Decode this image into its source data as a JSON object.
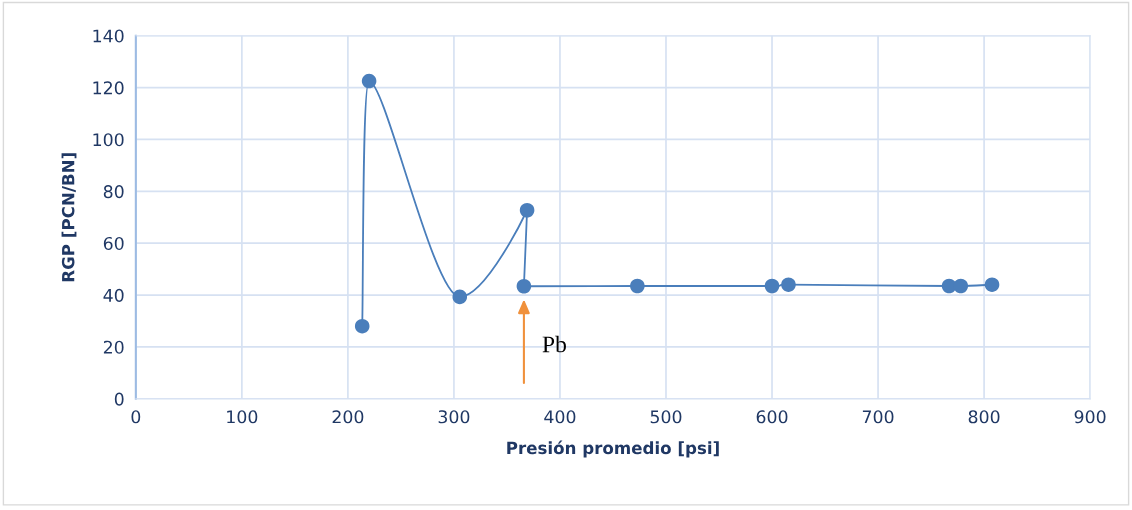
{
  "chart_data": {
    "type": "line",
    "xlabel": "Presión promedio [psi]",
    "ylabel": "RGP [PCN/BN]",
    "x": [
      213.5,
      220,
      305.5,
      369,
      366,
      473,
      600,
      615.5,
      767,
      778,
      807.5
    ],
    "series": [
      {
        "color": "#4a7ebb",
        "values": [
          28,
          122.5,
          39.3,
          72.7,
          43.4,
          43.5,
          43.5,
          44,
          43.5,
          43.5,
          44
        ]
      }
    ],
    "xlim": [
      0,
      900
    ],
    "xticks": [
      0,
      100,
      200,
      300,
      400,
      500,
      600,
      700,
      800,
      900
    ],
    "ylim": [
      0,
      140
    ],
    "yticks": [
      0,
      20,
      40,
      60,
      80,
      100,
      120,
      140
    ],
    "grid": true,
    "marker": "circle",
    "line_style": "solid",
    "legend": false,
    "annotations": [
      {
        "text": "Pb",
        "x": 366,
        "y": 43.4
      }
    ]
  }
}
